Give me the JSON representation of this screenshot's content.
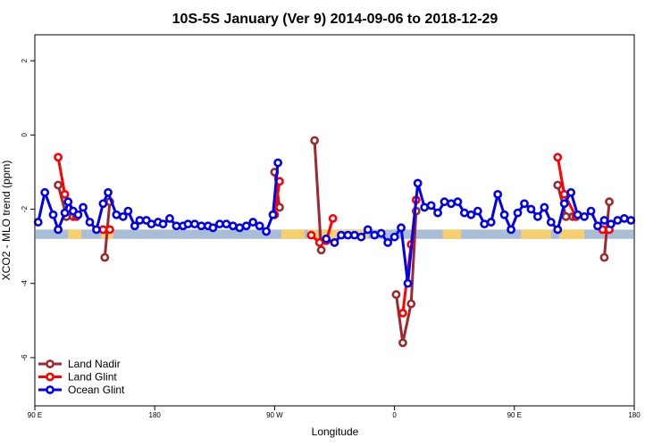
{
  "chart_data": {
    "type": "line",
    "title": "10S-5S January (Ver 9)   2014-09-06 to 2018-12-29",
    "xlabel": "Longitude",
    "ylabel": "XCO2 - MLO trend (ppm)",
    "xlim": [
      90,
      450
    ],
    "ylim": [
      -7.3,
      2.7
    ],
    "x_ticks": [
      {
        "value": 90,
        "label": "90 E"
      },
      {
        "value": 162,
        "label": "180"
      },
      {
        "value": 234,
        "label": "90 W"
      },
      {
        "value": 306,
        "label": "0"
      },
      {
        "value": 378,
        "label": "90 E"
      },
      {
        "value": 450,
        "label": "180"
      }
    ],
    "y_ticks": [
      2,
      0,
      -2,
      -4,
      -6
    ],
    "band": {
      "y_low": -2.8,
      "y_high": -2.55,
      "color": "#a9bdd6",
      "land_color": "#f7cf6e",
      "land_segments": [
        [
          110,
          118
        ],
        [
          130,
          137
        ],
        [
          238,
          252
        ],
        [
          254,
          260
        ],
        [
          262,
          290
        ],
        [
          335,
          346
        ],
        [
          382,
          400
        ],
        [
          405,
          420
        ]
      ]
    },
    "series": [
      {
        "name": "Land Nadir",
        "color": "#a0282d",
        "segments": [
          [
            [
              104,
              -1.35
            ],
            [
              109,
              -2.2
            ],
            [
              113,
              -2.2
            ]
          ],
          [
            [
              132,
              -3.3
            ],
            [
              135,
              -1.8
            ]
          ],
          [
            [
              234,
              -1.0
            ],
            [
              237,
              -1.95
            ]
          ],
          [
            [
              258,
              -0.15
            ],
            [
              262,
              -3.1
            ]
          ],
          [
            [
              307,
              -4.3
            ],
            [
              311,
              -5.6
            ],
            [
              316,
              -4.55
            ],
            [
              319,
              -2.05
            ]
          ],
          [
            [
              404,
              -1.35
            ],
            [
              409,
              -2.2
            ],
            [
              413,
              -2.2
            ]
          ],
          [
            [
              432,
              -3.3
            ],
            [
              435,
              -1.8
            ]
          ]
        ]
      },
      {
        "name": "Land Glint",
        "color": "#ff0000",
        "segments": [
          [
            [
              104,
              -0.6
            ],
            [
              108,
              -1.6
            ],
            [
              115,
              -2.2
            ]
          ],
          [
            [
              131,
              -2.55
            ],
            [
              135,
              -2.55
            ]
          ],
          [
            [
              234,
              -2.15
            ],
            [
              237,
              -1.25
            ]
          ],
          [
            [
              256,
              -2.7
            ],
            [
              261,
              -2.9
            ],
            [
              265,
              -2.85
            ],
            [
              269,
              -2.25
            ]
          ],
          [
            [
              311,
              -4.8
            ],
            [
              316,
              -2.95
            ],
            [
              319,
              -1.75
            ]
          ],
          [
            [
              404,
              -0.6
            ],
            [
              408,
              -1.6
            ],
            [
              415,
              -2.2
            ]
          ],
          [
            [
              431,
              -2.55
            ],
            [
              435,
              -2.55
            ]
          ]
        ]
      },
      {
        "name": "Ocean Glint",
        "color": "#0000ee",
        "segments": [
          [
            [
              92,
              -2.35
            ],
            [
              96,
              -1.55
            ],
            [
              101,
              -2.15
            ],
            [
              104,
              -2.55
            ],
            [
              108,
              -2.1
            ],
            [
              110,
              -1.8
            ],
            [
              113,
              -2.05
            ],
            [
              116,
              -2.15
            ],
            [
              119,
              -1.95
            ],
            [
              123,
              -2.35
            ],
            [
              127,
              -2.55
            ],
            [
              131,
              -1.85
            ],
            [
              134,
              -1.55
            ],
            [
              139,
              -2.15
            ],
            [
              143,
              -2.2
            ],
            [
              146,
              -2.05
            ],
            [
              150,
              -2.45
            ],
            [
              153,
              -2.3
            ],
            [
              157,
              -2.3
            ],
            [
              160,
              -2.4
            ],
            [
              164,
              -2.35
            ],
            [
              167,
              -2.4
            ],
            [
              171,
              -2.25
            ],
            [
              175,
              -2.45
            ],
            [
              179,
              -2.45
            ],
            [
              182,
              -2.4
            ],
            [
              186,
              -2.4
            ],
            [
              190,
              -2.45
            ],
            [
              194,
              -2.45
            ],
            [
              197,
              -2.5
            ],
            [
              201,
              -2.4
            ],
            [
              205,
              -2.4
            ],
            [
              209,
              -2.45
            ],
            [
              213,
              -2.5
            ],
            [
              217,
              -2.45
            ],
            [
              221,
              -2.35
            ],
            [
              225,
              -2.45
            ],
            [
              229,
              -2.6
            ],
            [
              233,
              -2.15
            ],
            [
              236,
              -0.75
            ]
          ],
          [
            [
              265,
              -2.8
            ],
            [
              270,
              -2.9
            ],
            [
              274,
              -2.7
            ],
            [
              278,
              -2.7
            ],
            [
              282,
              -2.7
            ],
            [
              286,
              -2.75
            ],
            [
              290,
              -2.55
            ],
            [
              294,
              -2.7
            ],
            [
              298,
              -2.65
            ],
            [
              302,
              -2.9
            ],
            [
              306,
              -2.75
            ],
            [
              310,
              -2.5
            ],
            [
              314,
              -4.0
            ],
            [
              320,
              -1.3
            ],
            [
              324,
              -1.95
            ],
            [
              328,
              -1.9
            ],
            [
              332,
              -2.1
            ],
            [
              336,
              -1.8
            ],
            [
              340,
              -1.85
            ],
            [
              344,
              -1.8
            ],
            [
              348,
              -2.1
            ],
            [
              352,
              -2.15
            ],
            [
              356,
              -2.05
            ],
            [
              360,
              -2.4
            ],
            [
              364,
              -2.35
            ],
            [
              368,
              -1.6
            ],
            [
              372,
              -2.15
            ],
            [
              376,
              -2.55
            ],
            [
              380,
              -2.1
            ],
            [
              384,
              -1.85
            ],
            [
              388,
              -2.0
            ],
            [
              392,
              -2.2
            ],
            [
              396,
              -1.95
            ],
            [
              400,
              -2.35
            ],
            [
              404,
              -2.55
            ],
            [
              408,
              -1.85
            ],
            [
              412,
              -1.55
            ],
            [
              416,
              -2.15
            ],
            [
              420,
              -2.2
            ],
            [
              424,
              -2.05
            ],
            [
              428,
              -2.45
            ],
            [
              432,
              -2.3
            ],
            [
              436,
              -2.4
            ],
            [
              440,
              -2.3
            ],
            [
              444,
              -2.25
            ],
            [
              448,
              -2.3
            ]
          ]
        ]
      }
    ],
    "legend": {
      "position": "bottom-left",
      "entries": [
        {
          "label": "Land Nadir",
          "color": "#a0282d"
        },
        {
          "label": "Land Glint",
          "color": "#ff0000"
        },
        {
          "label": "Ocean Glint",
          "color": "#0000ee"
        }
      ]
    }
  }
}
